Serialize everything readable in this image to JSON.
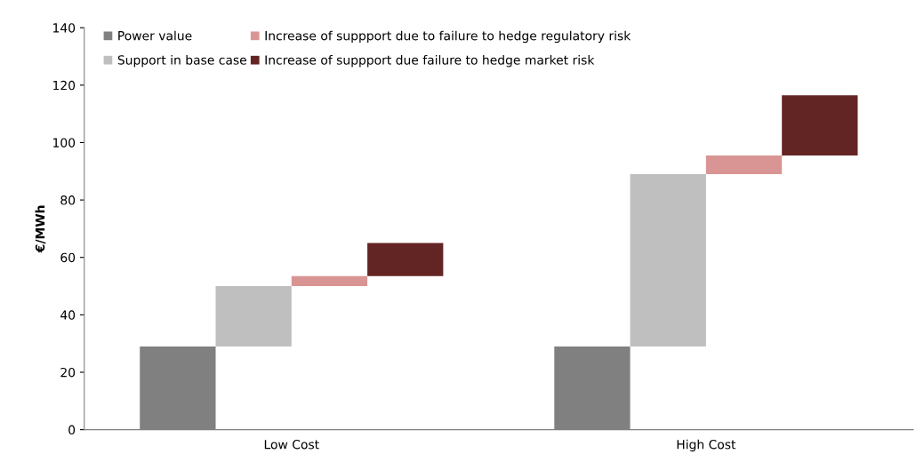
{
  "chart_data": {
    "type": "bar",
    "ylabel": "€/MWh",
    "categories": [
      "Low Cost",
      "High Cost"
    ],
    "series": [
      {
        "name": "Power value",
        "color": "#808080",
        "values": [
          29,
          29
        ],
        "base": [
          0,
          0
        ]
      },
      {
        "name": "Support in base case",
        "color": "#bfbfbf",
        "values": [
          21,
          60
        ],
        "base": [
          29,
          29
        ]
      },
      {
        "name": "Increase of suppport due to failure to hedge regulatory risk",
        "color": "#d99594",
        "values": [
          3.5,
          6.5
        ],
        "base": [
          50,
          89
        ]
      },
      {
        "name": "Increase of suppport due failure to hedge market risk",
        "color": "#632523",
        "values": [
          11.5,
          21
        ],
        "base": [
          53.5,
          95.5
        ]
      }
    ],
    "ylim": [
      0,
      140
    ],
    "yticks": [
      0,
      20,
      40,
      60,
      80,
      100,
      120,
      140
    ],
    "grid": false,
    "legend": "top"
  }
}
